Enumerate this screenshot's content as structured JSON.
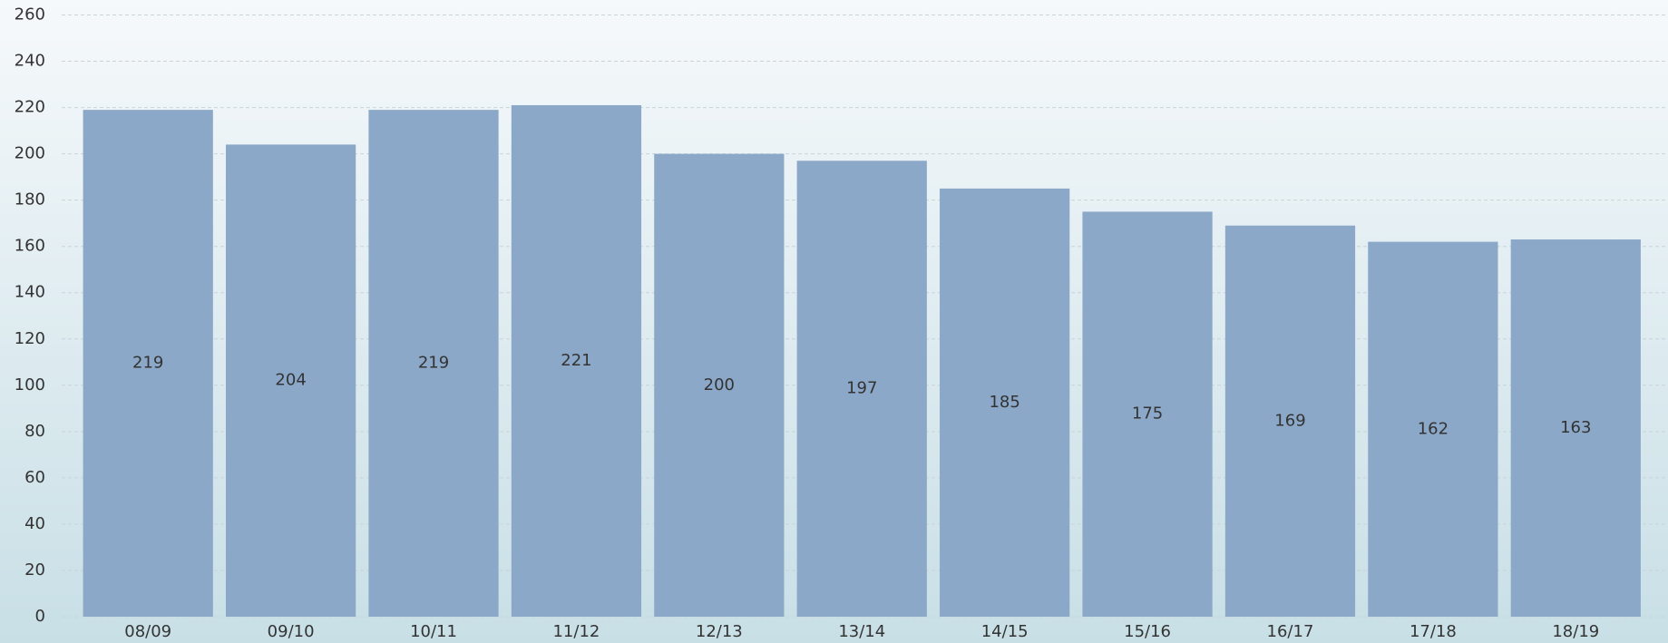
{
  "chart_data": {
    "type": "bar",
    "categories": [
      "08/09",
      "09/10",
      "10/11",
      "11/12",
      "12/13",
      "13/14",
      "14/15",
      "15/16",
      "16/17",
      "17/18",
      "18/19"
    ],
    "values": [
      219,
      204,
      219,
      221,
      200,
      197,
      185,
      175,
      169,
      162,
      163
    ],
    "color": "#8ba8c9",
    "ylim": [
      0,
      260
    ],
    "yticks": [
      0,
      20,
      40,
      60,
      80,
      100,
      120,
      140,
      160,
      180,
      200,
      220,
      240,
      260
    ],
    "grid": true
  }
}
